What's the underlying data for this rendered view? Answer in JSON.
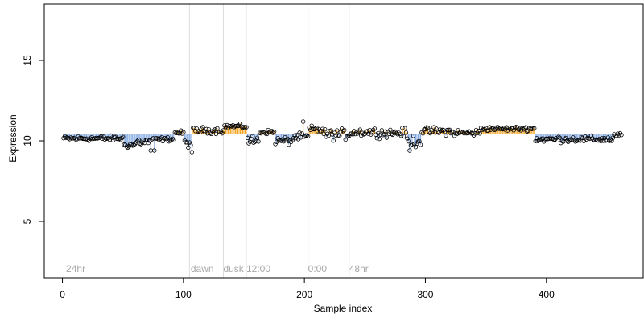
{
  "chart_data": {
    "type": "scatter",
    "title": "",
    "xlabel": "Sample index",
    "ylabel": "Expression",
    "xlim": [
      -15,
      480
    ],
    "ylim": [
      1.5,
      18.5
    ],
    "xticks": [
      0,
      100,
      200,
      300,
      400
    ],
    "yticks": [
      5,
      10,
      15
    ],
    "baseline": 10.4,
    "grid": false,
    "colors": {
      "above": "#f5a623",
      "below": "#7ea6e0",
      "point_edge": "#000000",
      "region_line": "#dddddd",
      "region_label": "#a8a8a8"
    },
    "regions": [
      {
        "x": 3,
        "label": "24hr"
      },
      {
        "x": 106,
        "label": "dawn"
      },
      {
        "x": 133,
        "label": "dusk"
      },
      {
        "x": 152,
        "label": "12:00"
      },
      {
        "x": 203,
        "label": "0:00"
      },
      {
        "x": 237,
        "label": "48hr"
      }
    ],
    "boundaries": [
      105,
      133,
      152,
      203,
      237
    ],
    "segments": [
      [
        0,
        50,
        10.15,
        0.15
      ],
      [
        50,
        60,
        9.75,
        0.18
      ],
      [
        60,
        72,
        9.95,
        0.25
      ],
      [
        72,
        92,
        10.1,
        0.12
      ],
      [
        92,
        100,
        10.5,
        0.12
      ],
      [
        100,
        106,
        9.85,
        0.25
      ],
      [
        106,
        133,
        10.65,
        0.18
      ],
      [
        133,
        152,
        10.9,
        0.12
      ],
      [
        152,
        162,
        10.0,
        0.3
      ],
      [
        162,
        175,
        10.55,
        0.12
      ],
      [
        175,
        190,
        10.0,
        0.22
      ],
      [
        190,
        203,
        10.25,
        0.2
      ],
      [
        203,
        215,
        10.7,
        0.22
      ],
      [
        215,
        237,
        10.4,
        0.3
      ],
      [
        237,
        258,
        10.55,
        0.25
      ],
      [
        258,
        284,
        10.5,
        0.25
      ],
      [
        284,
        296,
        10.0,
        0.35
      ],
      [
        296,
        320,
        10.6,
        0.22
      ],
      [
        320,
        345,
        10.5,
        0.2
      ],
      [
        345,
        390,
        10.75,
        0.12
      ],
      [
        390,
        455,
        10.1,
        0.18
      ],
      [
        455,
        462,
        10.35,
        0.12
      ]
    ],
    "spikes": [
      [
        106,
        9.3
      ],
      [
        198,
        11.2
      ],
      [
        286,
        9.4
      ],
      [
        75,
        9.4
      ],
      [
        72,
        9.4
      ]
    ],
    "n_points": 462
  }
}
